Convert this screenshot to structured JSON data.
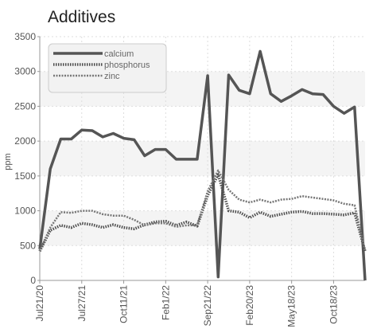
{
  "chart_data": {
    "type": "line",
    "title": "Additives",
    "xlabel": "",
    "ylabel": "ppm",
    "ylim": [
      0,
      3500
    ],
    "y_ticks": [
      "0",
      "500",
      "1000",
      "1500",
      "2000",
      "2500",
      "3000",
      "3500"
    ],
    "x_tick_labels": [
      "Jul21/20",
      "Jul27/21",
      "Oct11/21",
      "Feb1/22",
      "Sep21/22",
      "Feb20/23",
      "May18/23",
      "Oct18/23"
    ],
    "x_tick_positions": [
      0,
      4,
      8,
      12,
      16,
      20,
      24,
      28
    ],
    "grid": true,
    "legend_placement": "top-left",
    "series": [
      {
        "name": "calcium",
        "color": "#555555",
        "style": "solid",
        "values": [
          450,
          1600,
          2030,
          2030,
          2160,
          2150,
          2060,
          2110,
          2040,
          2020,
          1790,
          1880,
          1880,
          1740,
          1740,
          1740,
          2940,
          50,
          2950,
          2730,
          2680,
          3290,
          2680,
          2570,
          2650,
          2740,
          2680,
          2670,
          2500,
          2400,
          2490,
          0
        ]
      },
      {
        "name": "phosphorus",
        "color": "#4d4d4d",
        "style": "dotted",
        "values": [
          420,
          720,
          790,
          760,
          820,
          800,
          760,
          800,
          760,
          740,
          800,
          840,
          850,
          790,
          840,
          780,
          1220,
          1520,
          1000,
          980,
          900,
          980,
          920,
          950,
          980,
          990,
          960,
          960,
          950,
          940,
          970,
          420
        ]
      },
      {
        "name": "zinc",
        "color": "#777777",
        "style": "dashed",
        "values": [
          420,
          760,
          980,
          970,
          1000,
          1000,
          950,
          930,
          930,
          870,
          790,
          820,
          820,
          770,
          790,
          790,
          1280,
          1580,
          1300,
          1160,
          1120,
          1160,
          1120,
          1160,
          1170,
          1210,
          1190,
          1170,
          1150,
          1100,
          1080,
          420
        ]
      }
    ]
  }
}
